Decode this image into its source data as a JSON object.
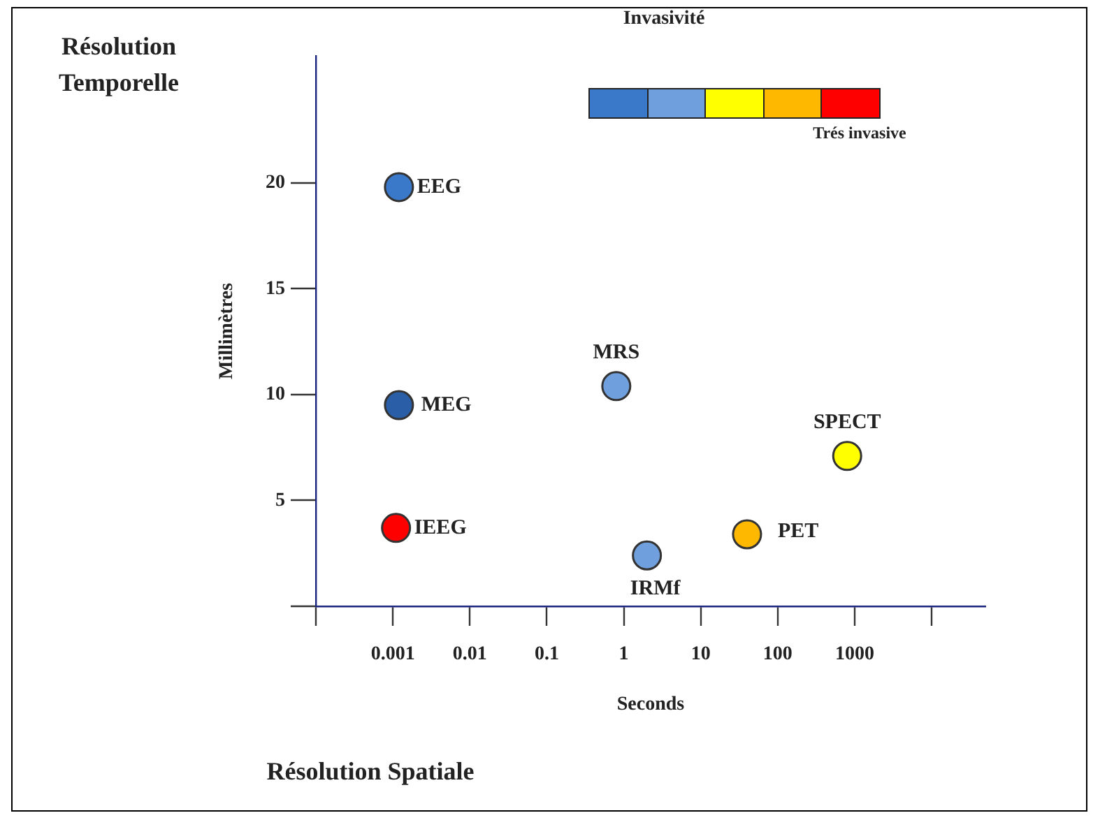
{
  "chart_data": {
    "type": "scatter",
    "xlabel": "Seconds",
    "ylabel": "Millimètres",
    "log": "x",
    "legend_title": "Invasivité",
    "x": [
      0.0012,
      0.0012,
      0.0011,
      0.8,
      2,
      40,
      800
    ],
    "values": [
      19.8,
      9.5,
      3.7,
      10.4,
      2.4,
      3.4,
      7.1
    ],
    "colors": [
      "#3a78c9",
      "#2a5fa8",
      "#ff0000",
      "#6f9fdc",
      "#6f9fdc",
      "#ffb800",
      "#ffff00"
    ],
    "xlim": [
      0.0001,
      50000
    ],
    "xticks": [
      {
        "value": 0.0001,
        "label": null
      },
      0.001,
      0.01,
      0.1,
      1,
      10,
      100,
      1000,
      {
        "value": 10000,
        "label": null
      }
    ],
    "ylim": [
      0,
      26
    ],
    "yticks": [
      {
        "value": 0,
        "label": null
      },
      5,
      10,
      15,
      20
    ],
    "marker": "circle",
    "grid": false,
    "legend": false,
    "annotations": [
      "Résolution Temporelle",
      "Résolution Spatiale",
      "Trés invasive",
      {
        "text": "EEG",
        "x": 0.0012,
        "y": 19.8
      },
      {
        "text": "MEG",
        "x": 0.0012,
        "y": 9.5
      },
      {
        "text": "IEEG",
        "x": 0.0011,
        "y": 3.7
      },
      {
        "text": "MRS",
        "x": 0.8,
        "y": 10.4
      },
      {
        "text": "IRMf",
        "x": 2,
        "y": 2.4
      },
      {
        "text": "PET",
        "x": 40,
        "y": 3.4
      },
      {
        "text": "SPECT",
        "x": 800,
        "y": 7.1
      }
    ]
  }
}
